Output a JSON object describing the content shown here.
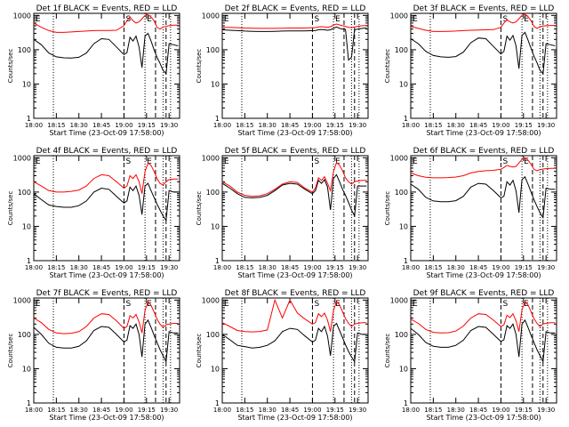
{
  "common": {
    "xlabel": "Start Time (23-Oct-09 17:58:00)",
    "ylabel": "Counts/sec",
    "xticks": [
      "18:00",
      "18:15",
      "18:30",
      "18:45",
      "19:00",
      "19:15",
      "19:30"
    ],
    "yticks": [
      "1",
      "10",
      "100",
      "1000"
    ],
    "marker_labels": [
      "S",
      "E"
    ],
    "corner_label": "E",
    "series_colors": {
      "events": "#000000",
      "lld": "#ff0000"
    }
  },
  "chart_data": [
    {
      "type": "line",
      "title": "Det 1f BLACK = Events, RED = LLD",
      "yscale": "log",
      "ylim": [
        1,
        1000
      ],
      "xlim": [
        "18:00",
        "19:37"
      ],
      "x": [
        "18:00",
        "18:05",
        "18:10",
        "18:15",
        "18:20",
        "18:25",
        "18:30",
        "18:35",
        "18:40",
        "18:45",
        "18:50",
        "18:55",
        "19:00",
        "19:02",
        "19:04",
        "19:06",
        "19:08",
        "19:10",
        "19:12",
        "19:14",
        "19:16",
        "19:18",
        "19:20",
        "19:22",
        "19:24",
        "19:26",
        "19:28",
        "19:30",
        "19:33",
        "19:36"
      ],
      "series": [
        {
          "name": "Events",
          "values": [
            200,
            140,
            80,
            62,
            58,
            57,
            60,
            80,
            150,
            210,
            200,
            120,
            72,
            82,
            230,
            180,
            250,
            120,
            30,
            250,
            300,
            180,
            100,
            60,
            40,
            25,
            20,
            150,
            140,
            130
          ]
        },
        {
          "name": "LLD",
          "values": [
            600,
            450,
            360,
            320,
            320,
            330,
            340,
            350,
            360,
            365,
            365,
            370,
            500,
            700,
            900,
            700,
            600,
            650,
            800,
            1000,
            1050,
            900,
            700,
            450,
            400,
            460,
            480,
            500,
            520,
            520
          ]
        }
      ],
      "markers": {
        "dotted": [
          "18:13",
          "19:14",
          "19:26",
          "19:31"
        ],
        "dashed": [
          "19:00",
          "19:21",
          "19:28"
        ]
      }
    },
    {
      "type": "line",
      "title": "Det 2f BLACK = Events, RED = LLD",
      "yscale": "log",
      "ylim": [
        1,
        1000
      ],
      "xlim": [
        "18:00",
        "19:37"
      ],
      "x": [
        "18:00",
        "18:05",
        "18:10",
        "18:15",
        "18:20",
        "18:25",
        "18:30",
        "18:35",
        "18:40",
        "18:45",
        "18:50",
        "18:55",
        "19:00",
        "19:02",
        "19:04",
        "19:06",
        "19:08",
        "19:10",
        "19:12",
        "19:14",
        "19:16",
        "19:18",
        "19:20",
        "19:22",
        "19:24",
        "19:26",
        "19:28",
        "19:30",
        "19:33",
        "19:36"
      ],
      "series": [
        {
          "name": "Events",
          "values": [
            380,
            370,
            360,
            350,
            345,
            340,
            340,
            345,
            350,
            355,
            355,
            355,
            360,
            360,
            380,
            390,
            380,
            370,
            380,
            420,
            460,
            420,
            400,
            390,
            50,
            60,
            380,
            400,
            420,
            430
          ]
        },
        {
          "name": "LLD",
          "values": [
            450,
            450,
            440,
            430,
            425,
            420,
            420,
            420,
            425,
            430,
            430,
            430,
            440,
            440,
            460,
            470,
            460,
            450,
            470,
            520,
            560,
            530,
            500,
            480,
            450,
            440,
            460,
            480,
            500,
            510
          ]
        }
      ],
      "markers": {
        "dotted": [
          "18:13",
          "19:14",
          "19:26",
          "19:31"
        ],
        "dashed": [
          "19:00",
          "19:21",
          "19:28"
        ]
      }
    },
    {
      "type": "line",
      "title": "Det 3f BLACK = Events, RED = LLD",
      "yscale": "log",
      "ylim": [
        1,
        1000
      ],
      "xlim": [
        "18:00",
        "19:37"
      ],
      "x": [
        "18:00",
        "18:05",
        "18:10",
        "18:15",
        "18:20",
        "18:25",
        "18:30",
        "18:35",
        "18:40",
        "18:45",
        "18:50",
        "18:55",
        "19:00",
        "19:02",
        "19:04",
        "19:06",
        "19:08",
        "19:10",
        "19:12",
        "19:14",
        "19:16",
        "19:18",
        "19:20",
        "19:22",
        "19:24",
        "19:26",
        "19:28",
        "19:30",
        "19:33",
        "19:36"
      ],
      "series": [
        {
          "name": "Events",
          "values": [
            210,
            150,
            90,
            68,
            62,
            60,
            63,
            85,
            160,
            220,
            210,
            125,
            75,
            90,
            250,
            190,
            260,
            130,
            28,
            260,
            320,
            190,
            110,
            65,
            42,
            25,
            20,
            150,
            140,
            130
          ]
        },
        {
          "name": "LLD",
          "values": [
            480,
            420,
            370,
            340,
            340,
            345,
            350,
            360,
            370,
            375,
            380,
            385,
            450,
            600,
            750,
            650,
            600,
            650,
            800,
            1000,
            1080,
            920,
            700,
            480,
            420,
            470,
            490,
            500,
            510,
            510
          ]
        }
      ],
      "markers": {
        "dotted": [
          "18:13",
          "19:14",
          "19:26",
          "19:31"
        ],
        "dashed": [
          "19:00",
          "19:21",
          "19:28"
        ]
      }
    },
    {
      "type": "line",
      "title": "Det 4f BLACK = Events, RED = LLD",
      "yscale": "log",
      "ylim": [
        1,
        1000
      ],
      "xlim": [
        "18:00",
        "19:37"
      ],
      "x": [
        "18:00",
        "18:05",
        "18:10",
        "18:15",
        "18:20",
        "18:25",
        "18:30",
        "18:35",
        "18:40",
        "18:45",
        "18:50",
        "18:55",
        "19:00",
        "19:02",
        "19:04",
        "19:06",
        "19:08",
        "19:10",
        "19:12",
        "19:14",
        "19:16",
        "19:18",
        "19:20",
        "19:22",
        "19:24",
        "19:26",
        "19:28",
        "19:30",
        "19:33",
        "19:36"
      ],
      "series": [
        {
          "name": "Events",
          "values": [
            90,
            60,
            42,
            38,
            36,
            36,
            40,
            55,
            100,
            130,
            120,
            75,
            48,
            55,
            140,
            110,
            150,
            80,
            22,
            150,
            180,
            110,
            70,
            45,
            30,
            20,
            15,
            110,
            100,
            100
          ]
        },
        {
          "name": "LLD",
          "values": [
            200,
            150,
            110,
            100,
            100,
            105,
            115,
            150,
            250,
            320,
            300,
            200,
            130,
            150,
            300,
            250,
            320,
            200,
            90,
            400,
            700,
            600,
            400,
            250,
            180,
            160,
            200,
            230,
            240,
            240
          ]
        }
      ],
      "markers": {
        "dotted": [
          "18:13",
          "19:14",
          "19:26",
          "19:31"
        ],
        "dashed": [
          "19:00",
          "19:21",
          "19:28"
        ]
      }
    },
    {
      "type": "line",
      "title": "Det 5f BLACK = Events, RED = LLD",
      "yscale": "log",
      "ylim": [
        1,
        1000
      ],
      "xlim": [
        "18:00",
        "19:37"
      ],
      "x": [
        "18:00",
        "18:05",
        "18:10",
        "18:15",
        "18:20",
        "18:25",
        "18:30",
        "18:35",
        "18:40",
        "18:45",
        "18:50",
        "18:55",
        "19:00",
        "19:02",
        "19:04",
        "19:06",
        "19:08",
        "19:10",
        "19:12",
        "19:14",
        "19:16",
        "19:18",
        "19:20",
        "19:22",
        "19:24",
        "19:26",
        "19:28",
        "19:30",
        "19:33",
        "19:36"
      ],
      "series": [
        {
          "name": "Events",
          "values": [
            180,
            130,
            90,
            70,
            68,
            70,
            80,
            110,
            160,
            180,
            170,
            120,
            90,
            110,
            220,
            180,
            230,
            140,
            30,
            250,
            320,
            200,
            120,
            80,
            50,
            30,
            20,
            150,
            150,
            150
          ]
        },
        {
          "name": "LLD",
          "values": [
            200,
            150,
            100,
            80,
            75,
            78,
            90,
            120,
            170,
            200,
            190,
            130,
            100,
            130,
            260,
            220,
            280,
            180,
            110,
            400,
            720,
            600,
            420,
            260,
            200,
            170,
            200,
            210,
            220,
            220
          ]
        }
      ],
      "markers": {
        "dotted": [
          "18:13",
          "19:14",
          "19:26",
          "19:31"
        ],
        "dashed": [
          "19:00",
          "19:21",
          "19:28"
        ]
      }
    },
    {
      "type": "line",
      "title": "Det 6f BLACK = Events, RED = LLD",
      "yscale": "log",
      "ylim": [
        1,
        1000
      ],
      "xlim": [
        "18:00",
        "19:37"
      ],
      "x": [
        "18:00",
        "18:05",
        "18:10",
        "18:15",
        "18:20",
        "18:25",
        "18:30",
        "18:35",
        "18:40",
        "18:45",
        "18:50",
        "18:55",
        "19:00",
        "19:02",
        "19:04",
        "19:06",
        "19:08",
        "19:10",
        "19:12",
        "19:14",
        "19:16",
        "19:18",
        "19:20",
        "19:22",
        "19:24",
        "19:26",
        "19:28",
        "19:30",
        "19:33",
        "19:36"
      ],
      "series": [
        {
          "name": "Events",
          "values": [
            170,
            120,
            70,
            55,
            52,
            52,
            56,
            75,
            140,
            180,
            170,
            110,
            68,
            75,
            200,
            160,
            220,
            110,
            25,
            230,
            280,
            170,
            100,
            60,
            38,
            25,
            18,
            130,
            120,
            120
          ]
        },
        {
          "name": "LLD",
          "values": [
            360,
            300,
            270,
            260,
            260,
            265,
            275,
            300,
            360,
            400,
            420,
            430,
            460,
            520,
            600,
            560,
            540,
            560,
            700,
            900,
            1000,
            850,
            650,
            460,
            420,
            450,
            470,
            480,
            490,
            490
          ]
        }
      ],
      "markers": {
        "dotted": [
          "18:13",
          "19:14",
          "19:26",
          "19:31"
        ],
        "dashed": [
          "19:00",
          "19:21",
          "19:28"
        ]
      }
    },
    {
      "type": "line",
      "title": "Det 7f BLACK = Events, RED = LLD",
      "yscale": "log",
      "ylim": [
        1,
        1000
      ],
      "xlim": [
        "18:00",
        "19:37"
      ],
      "x": [
        "18:00",
        "18:05",
        "18:10",
        "18:15",
        "18:20",
        "18:25",
        "18:30",
        "18:35",
        "18:40",
        "18:45",
        "18:50",
        "18:55",
        "19:00",
        "19:02",
        "19:04",
        "19:06",
        "19:08",
        "19:10",
        "19:12",
        "19:14",
        "19:16",
        "19:18",
        "19:20",
        "19:22",
        "19:24",
        "19:26",
        "19:28",
        "19:30",
        "19:33",
        "19:36"
      ],
      "series": [
        {
          "name": "Events",
          "values": [
            160,
            100,
            55,
            42,
            40,
            40,
            45,
            65,
            130,
            170,
            160,
            100,
            60,
            68,
            180,
            150,
            200,
            100,
            22,
            200,
            260,
            160,
            95,
            58,
            36,
            24,
            16,
            120,
            110,
            110
          ]
        },
        {
          "name": "LLD",
          "values": [
            300,
            220,
            140,
            110,
            105,
            108,
            120,
            170,
            300,
            400,
            380,
            250,
            150,
            170,
            350,
            300,
            380,
            230,
            110,
            500,
            900,
            700,
            450,
            280,
            200,
            160,
            190,
            200,
            210,
            210
          ]
        }
      ],
      "markers": {
        "dotted": [
          "18:13",
          "19:14",
          "19:26",
          "19:31"
        ],
        "dashed": [
          "19:00",
          "19:21",
          "19:28"
        ]
      }
    },
    {
      "type": "line",
      "title": "Det 8f BLACK = Events, RED = LLD",
      "yscale": "log",
      "ylim": [
        1,
        1000
      ],
      "xlim": [
        "18:00",
        "19:37"
      ],
      "x": [
        "18:00",
        "18:05",
        "18:10",
        "18:15",
        "18:20",
        "18:25",
        "18:30",
        "18:35",
        "18:40",
        "18:45",
        "18:50",
        "18:55",
        "19:00",
        "19:02",
        "19:04",
        "19:06",
        "19:08",
        "19:10",
        "19:12",
        "19:14",
        "19:16",
        "19:18",
        "19:20",
        "19:22",
        "19:24",
        "19:26",
        "19:28",
        "19:30",
        "19:33",
        "19:36"
      ],
      "series": [
        {
          "name": "Events",
          "values": [
            100,
            70,
            48,
            44,
            40,
            42,
            48,
            65,
            120,
            150,
            140,
            90,
            60,
            68,
            150,
            120,
            170,
            90,
            24,
            170,
            210,
            130,
            80,
            50,
            32,
            22,
            16,
            110,
            100,
            100
          ]
        },
        {
          "name": "LLD",
          "values": [
            220,
            170,
            130,
            120,
            118,
            122,
            135,
            1000,
            300,
            1000,
            420,
            280,
            200,
            220,
            400,
            330,
            420,
            260,
            120,
            500,
            900,
            720,
            460,
            290,
            210,
            170,
            200,
            210,
            220,
            220
          ]
        }
      ],
      "markers": {
        "dotted": [
          "18:13",
          "19:14",
          "19:26",
          "19:31"
        ],
        "dashed": [
          "19:00",
          "19:21",
          "19:28"
        ]
      }
    },
    {
      "type": "line",
      "title": "Det 9f BLACK = Events, RED = LLD",
      "yscale": "log",
      "ylim": [
        1,
        1000
      ],
      "xlim": [
        "18:00",
        "19:37"
      ],
      "x": [
        "18:00",
        "18:05",
        "18:10",
        "18:15",
        "18:20",
        "18:25",
        "18:30",
        "18:35",
        "18:40",
        "18:45",
        "18:50",
        "18:55",
        "19:00",
        "19:02",
        "19:04",
        "19:06",
        "19:08",
        "19:10",
        "19:12",
        "19:14",
        "19:16",
        "19:18",
        "19:20",
        "19:22",
        "19:24",
        "19:26",
        "19:28",
        "19:30",
        "19:33",
        "19:36"
      ],
      "series": [
        {
          "name": "Events",
          "values": [
            150,
            100,
            58,
            45,
            42,
            42,
            48,
            68,
            130,
            170,
            160,
            100,
            62,
            70,
            180,
            150,
            200,
            100,
            22,
            200,
            260,
            160,
            95,
            58,
            36,
            24,
            16,
            120,
            110,
            110
          ]
        },
        {
          "name": "LLD",
          "values": [
            280,
            210,
            140,
            115,
            110,
            112,
            125,
            175,
            300,
            400,
            380,
            260,
            170,
            190,
            360,
            310,
            400,
            250,
            120,
            520,
            900,
            720,
            460,
            290,
            210,
            170,
            200,
            210,
            220,
            220
          ]
        }
      ],
      "markers": {
        "dotted": [
          "18:13",
          "19:14",
          "19:26",
          "19:31"
        ],
        "dashed": [
          "19:00",
          "19:21",
          "19:28"
        ]
      }
    }
  ]
}
